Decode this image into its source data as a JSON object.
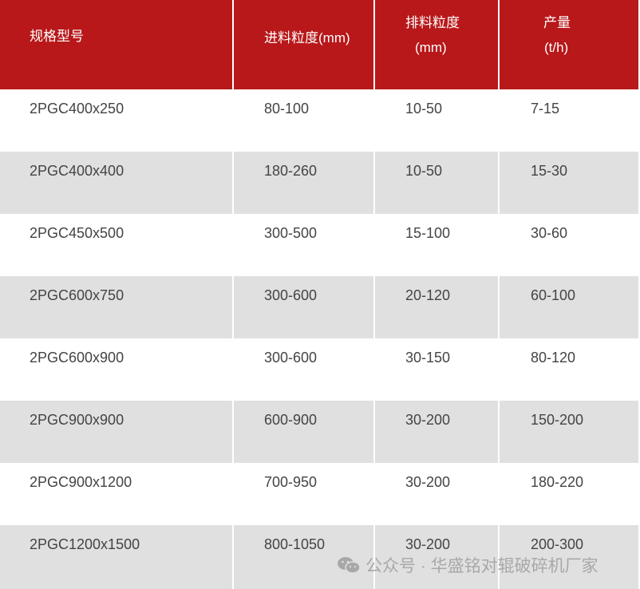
{
  "header": {
    "col0": "规格型号",
    "col1": "进料粒度(mm)",
    "col2_line1": "排料粒度",
    "col2_line2": "(mm)",
    "col3_line1": "产量",
    "col3_line2": "(t/h)"
  },
  "rows": [
    [
      "2PGC400x250",
      "80-100",
      "10-50",
      "7-15"
    ],
    [
      "2PGC400x400",
      "180-260",
      "10-50",
      "15-30"
    ],
    [
      "2PGC450x500",
      "300-500",
      "15-100",
      "30-60"
    ],
    [
      "2PGC600x750",
      "300-600",
      "20-120",
      "60-100"
    ],
    [
      "2PGC600x900",
      "300-600",
      "30-150",
      "80-120"
    ],
    [
      "2PGC900x900",
      "600-900",
      "30-200",
      "150-200"
    ],
    [
      "2PGC900x1200",
      "700-950",
      "30-200",
      "180-220"
    ],
    [
      "2PGC1200x1500",
      "800-1050",
      "30-200",
      "200-300"
    ]
  ],
  "watermark": {
    "icon": "wechat-icon",
    "text": "公众号 · 华盛铭对辊破碎机厂家"
  },
  "colors": {
    "header_bg": "#b8181a",
    "stripe": "#e0e0e0",
    "text": "#444444"
  }
}
